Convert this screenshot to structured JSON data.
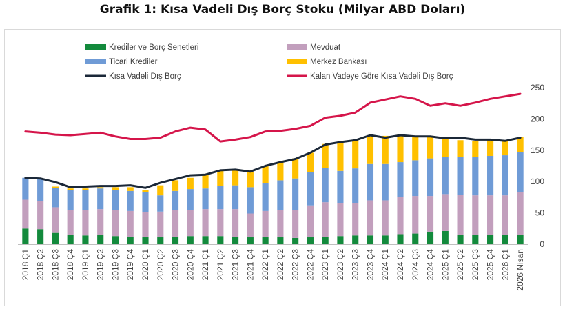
{
  "title": "Grafik 1: Kısa Vadeli Dış Borç Stoku (Milyar ABD Doları)",
  "colors": {
    "krediler": "#138a3c",
    "mevduat": "#c29fbd",
    "ticari": "#6f9bd6",
    "merkez": "#ffc000",
    "kvdb": "#1b2838",
    "kalan": "#d5154a"
  },
  "chart_data": {
    "type": "bar",
    "stacked": true,
    "title": "Grafik 1: Kısa Vadeli Dış Borç Stoku (Milyar ABD Doları)",
    "ylim": [
      0,
      250
    ],
    "yticks": [
      0,
      50,
      100,
      150,
      200,
      250
    ],
    "y_axis_position": "right",
    "grid": false,
    "legend_position": "top",
    "categories": [
      "2018 Ç1",
      "2018 Ç2",
      "2018 Ç3",
      "2018 Ç4",
      "2019 Ç1",
      "2019 Ç2",
      "2019 Ç3",
      "2019 Ç4",
      "2020 Ç1",
      "2020 Ç2",
      "2020 Ç3",
      "2020 Ç4",
      "2021 Ç1",
      "2021 Ç2",
      "2021 Ç3",
      "2021 Ç4",
      "2022 Ç1",
      "2022 Ç2",
      "2022 Ç3",
      "2022 Ç4",
      "2023 Ç1",
      "2023 Ç2",
      "2023 Ç3",
      "2023 Ç4",
      "2024 Ç1",
      "2024 Ç2",
      "2024 Ç3",
      "2024 Ç4",
      "2025 Ç1",
      "2025 Ç2",
      "2025 Ç3",
      "2025 Ç4",
      "2026 Ç1",
      "2026 Nisan"
    ],
    "series": [
      {
        "name": "Krediler ve Borç Senetleri",
        "kind": "bar",
        "color": "#138a3c",
        "values": [
          25,
          24,
          18,
          15,
          14,
          15,
          13,
          12,
          11,
          11,
          12,
          13,
          13,
          13,
          12,
          11,
          11,
          11,
          10,
          11,
          12,
          13,
          14,
          14,
          14,
          16,
          17,
          20,
          21,
          15,
          15,
          15,
          15,
          15
        ]
      },
      {
        "name": "Mevduat",
        "kind": "bar",
        "color": "#c29fbd",
        "values": [
          46,
          45,
          41,
          40,
          41,
          41,
          41,
          41,
          40,
          41,
          42,
          42,
          43,
          43,
          44,
          38,
          42,
          43,
          45,
          51,
          55,
          52,
          51,
          56,
          56,
          59,
          60,
          57,
          59,
          64,
          63,
          63,
          63,
          68
        ]
      },
      {
        "name": "Ticari Krediler",
        "kind": "bar",
        "color": "#6f9bd6",
        "values": [
          35,
          35,
          31,
          31,
          31,
          33,
          32,
          32,
          32,
          26,
          31,
          33,
          33,
          37,
          38,
          42,
          45,
          48,
          50,
          53,
          55,
          52,
          56,
          58,
          58,
          56,
          57,
          60,
          59,
          60,
          61,
          63,
          64,
          64
        ]
      },
      {
        "name": "Merkez Bankası",
        "kind": "bar",
        "color": "#ffc000",
        "values": [
          0,
          0,
          2,
          3,
          3,
          2,
          5,
          6,
          4,
          16,
          17,
          18,
          22,
          24,
          25,
          24,
          27,
          29,
          32,
          31,
          38,
          44,
          45,
          46,
          45,
          44,
          38,
          36,
          30,
          27,
          26,
          26,
          23,
          24
        ]
      },
      {
        "name": "Kısa Vadeli Dış Borç",
        "kind": "line",
        "color": "#1b2838",
        "values": [
          106,
          105,
          99,
          91,
          92,
          93,
          93,
          94,
          90,
          98,
          104,
          110,
          111,
          118,
          119,
          116,
          125,
          131,
          136,
          146,
          159,
          163,
          166,
          174,
          170,
          174,
          172,
          172,
          169,
          170,
          167,
          167,
          165,
          170
        ]
      },
      {
        "name": "Kalan Vadeye Göre Kısa Vadeli Dış Borç",
        "kind": "line",
        "color": "#d5154a",
        "values": [
          180,
          178,
          175,
          174,
          176,
          178,
          172,
          168,
          168,
          170,
          180,
          186,
          183,
          164,
          167,
          171,
          180,
          181,
          184,
          189,
          202,
          205,
          210,
          226,
          231,
          236,
          232,
          221,
          225,
          221,
          226,
          232,
          236,
          240
        ]
      }
    ]
  }
}
